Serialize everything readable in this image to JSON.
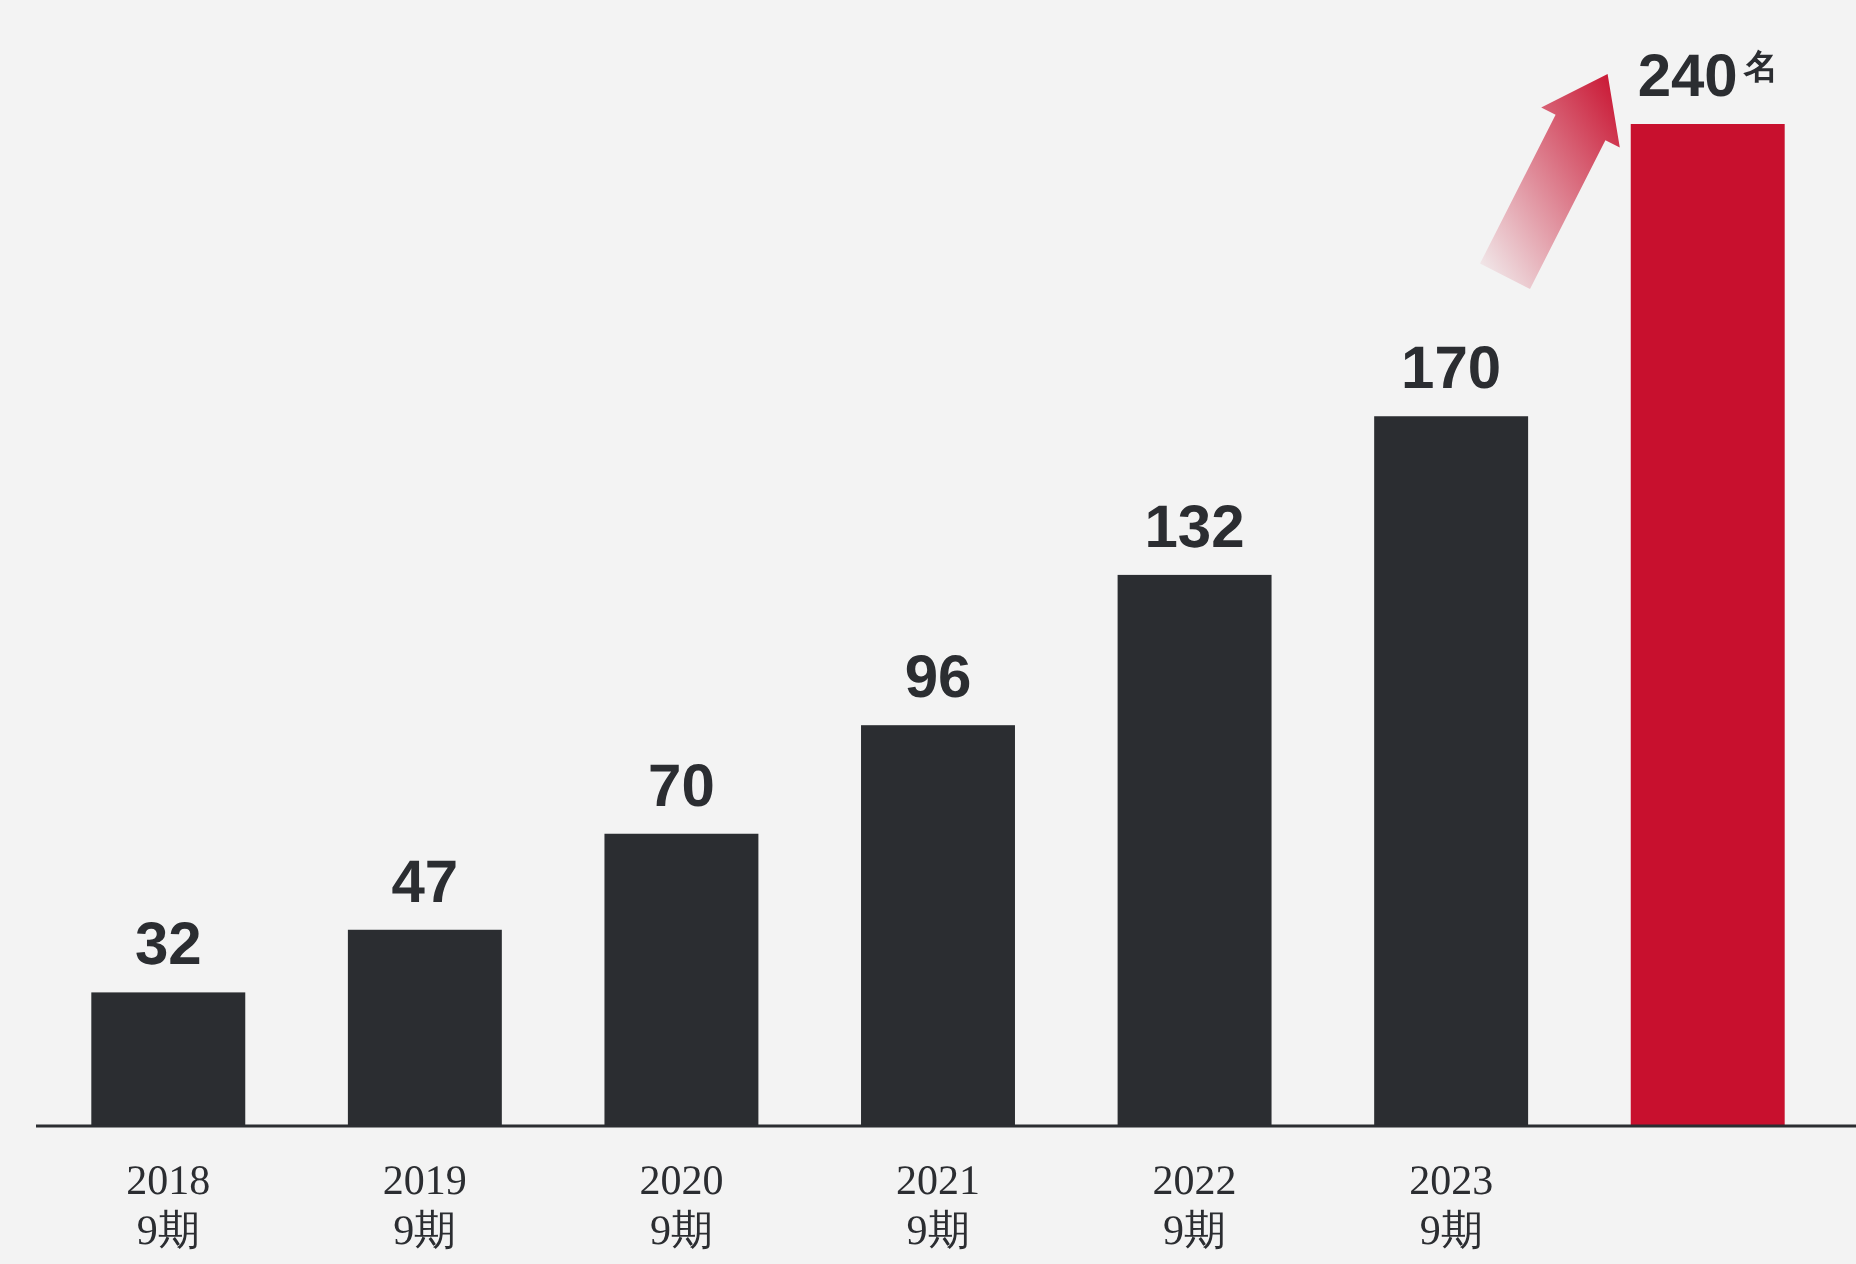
{
  "chart_data": {
    "type": "bar",
    "categories": [
      "2018\n9期",
      "2019\n9期",
      "2020\n9期",
      "2021\n9期",
      "2022\n9期",
      "2023\n9期",
      null
    ],
    "values": [
      32,
      47,
      70,
      96,
      132,
      170,
      240
    ],
    "colors": [
      "#2b2d31",
      "#2b2d31",
      "#2b2d31",
      "#2b2d31",
      "#2b2d31",
      "#2b2d31",
      "#c8102e"
    ],
    "value_labels": [
      "32",
      "47",
      "70",
      "96",
      "132",
      "170",
      "240$^{名}$"
    ]
  }
}
